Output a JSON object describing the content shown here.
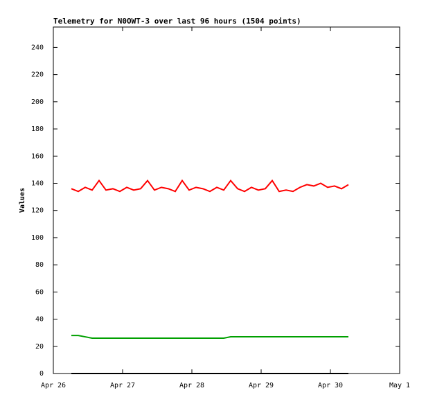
{
  "chart_data": {
    "type": "line",
    "title": "Telemetry for N0OWT-3 over last 96 hours (1504 points)",
    "y_label": "Values",
    "x": [
      0.26,
      0.36,
      0.46,
      0.56,
      0.66,
      0.76,
      0.86,
      0.96,
      1.06,
      1.16,
      1.26,
      1.36,
      1.46,
      1.56,
      1.66,
      1.76,
      1.86,
      1.96,
      2.06,
      2.16,
      2.26,
      2.36,
      2.46,
      2.56,
      2.66,
      2.76,
      2.86,
      2.96,
      3.06,
      3.16,
      3.26,
      3.36,
      3.46,
      3.56,
      3.66,
      3.76,
      3.86,
      3.96,
      4.06,
      4.16,
      4.26
    ],
    "series": [
      {
        "color": "#ff0000",
        "values": [
          136,
          134,
          137,
          135,
          142,
          135,
          136,
          134,
          137,
          135,
          136,
          142,
          135,
          137,
          136,
          134,
          142,
          135,
          137,
          136,
          134,
          137,
          135,
          142,
          136,
          134,
          137,
          135,
          136,
          142,
          134,
          135,
          134,
          137,
          139,
          138,
          140,
          137,
          138,
          136,
          139
        ]
      },
      {
        "color": "#00a000",
        "values": [
          28,
          28,
          27,
          26,
          26,
          26,
          26,
          26,
          26,
          26,
          26,
          26,
          26,
          26,
          26,
          26,
          26,
          26,
          26,
          26,
          26,
          26,
          26,
          27,
          27,
          27,
          27,
          27,
          27,
          27,
          27,
          27,
          27,
          27,
          27,
          27,
          27,
          27,
          27,
          27,
          27
        ]
      },
      {
        "color": "#000000",
        "values": [
          0,
          0,
          0,
          0,
          0,
          0,
          0,
          0,
          0,
          0,
          0,
          0,
          0,
          0,
          0,
          0,
          0,
          0,
          0,
          0,
          0,
          0,
          0,
          0,
          0,
          0,
          0,
          0,
          0,
          0,
          0,
          0,
          0,
          0,
          0,
          0,
          0,
          0,
          0,
          0,
          0
        ]
      }
    ],
    "xlim": [
      0,
      5
    ],
    "xticks": [
      {
        "value": 0,
        "label": "Apr 26"
      },
      {
        "value": 1,
        "label": "Apr 27"
      },
      {
        "value": 2,
        "label": "Apr 28"
      },
      {
        "value": 3,
        "label": "Apr 29"
      },
      {
        "value": 4,
        "label": "Apr 30"
      },
      {
        "value": 5,
        "label": "May 1"
      }
    ],
    "ylim": [
      0,
      255
    ],
    "yticks": [
      0,
      20,
      40,
      60,
      80,
      100,
      120,
      140,
      160,
      180,
      200,
      220,
      240
    ]
  }
}
